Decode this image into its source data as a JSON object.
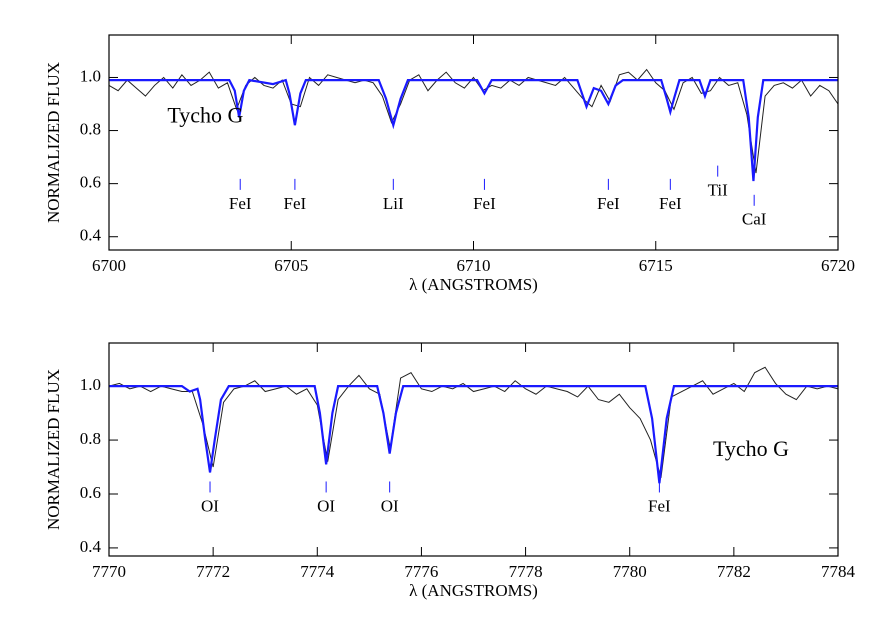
{
  "chart_data": [
    {
      "type": "line",
      "xlabel": "λ (ANGSTROMS)",
      "ylabel": "NORMALIZED FLUX",
      "xlim": [
        6700,
        6720
      ],
      "ylim": [
        0.35,
        1.16
      ],
      "xticks": [
        6700,
        6705,
        6710,
        6715,
        6720
      ],
      "yticks": [
        {
          "value": 0.4,
          "label": "0.4"
        },
        {
          "value": 0.6,
          "label": "0.6"
        },
        {
          "value": 0.8,
          "label": "0.8"
        },
        {
          "value": 1,
          "label": "1.0"
        }
      ],
      "series": [
        {
          "color": "#222222",
          "x": [
            6700,
            6700.25,
            6700.5,
            6700.75,
            6701,
            6701.25,
            6701.5,
            6701.75,
            6702,
            6702.25,
            6702.5,
            6702.75,
            6703,
            6703.25,
            6703.5,
            6703.75,
            6704,
            6704.25,
            6704.5,
            6704.75,
            6705,
            6705.25,
            6705.5,
            6705.75,
            6706,
            6706.25,
            6706.5,
            6706.75,
            6707,
            6707.25,
            6707.5,
            6707.75,
            6708,
            6708.25,
            6708.5,
            6708.75,
            6709,
            6709.25,
            6709.5,
            6709.75,
            6710,
            6710.25,
            6710.5,
            6710.75,
            6711,
            6711.25,
            6711.5,
            6711.75,
            6712,
            6712.25,
            6712.5,
            6712.75,
            6713,
            6713.25,
            6713.5,
            6713.75,
            6714,
            6714.25,
            6714.5,
            6714.75,
            6715,
            6715.25,
            6715.5,
            6715.75,
            6716,
            6716.25,
            6716.5,
            6716.75,
            6717,
            6717.25,
            6717.5,
            6717.75,
            6718,
            6718.25,
            6718.5,
            6718.75,
            6719,
            6719.25,
            6719.5,
            6719.75,
            6720
          ],
          "values": [
            0.97,
            0.95,
            0.99,
            0.96,
            0.93,
            0.97,
            1.0,
            0.96,
            1.01,
            0.97,
            0.99,
            1.02,
            0.96,
            0.98,
            0.88,
            0.97,
            1.0,
            0.97,
            0.96,
            0.99,
            0.9,
            0.89,
            1.0,
            0.97,
            1.01,
            1.0,
            0.99,
            0.98,
            0.99,
            0.98,
            0.93,
            0.83,
            0.9,
            0.99,
            1.01,
            0.95,
            0.99,
            1.02,
            0.98,
            0.96,
            1.0,
            0.95,
            0.97,
            0.96,
            0.99,
            0.97,
            1.0,
            0.99,
            0.98,
            0.97,
            1.0,
            0.96,
            0.92,
            0.89,
            0.97,
            0.91,
            1.01,
            1.02,
            0.99,
            1.03,
            0.98,
            0.95,
            0.88,
            0.98,
            1.0,
            0.94,
            0.95,
            1.0,
            0.97,
            0.98,
            0.86,
            0.64,
            0.93,
            0.97,
            0.98,
            0.96,
            0.99,
            0.93,
            0.97,
            0.95,
            0.9
          ]
        },
        {
          "color": "#1a1aff",
          "x": [
            6700,
            6703.3,
            6703.45,
            6703.57,
            6703.7,
            6703.85,
            6704.5,
            6704.85,
            6704.95,
            6705.1,
            6705.25,
            6705.4,
            6707.4,
            6707.6,
            6707.8,
            6708,
            6708.2,
            6710.1,
            6710.3,
            6710.5,
            6712.85,
            6713,
            6713.1,
            6713.3,
            6713.5,
            6713.7,
            6713.9,
            6714.1,
            6715.15,
            6715.3,
            6715.4,
            6715.5,
            6715.65,
            6716.2,
            6716.35,
            6716.5,
            6717.4,
            6717.55,
            6717.68,
            6717.8,
            6717.95,
            6720
          ],
          "values": [
            0.99,
            0.99,
            0.95,
            0.85,
            0.95,
            0.99,
            0.975,
            0.99,
            0.94,
            0.82,
            0.94,
            0.99,
            0.99,
            0.92,
            0.82,
            0.92,
            0.99,
            0.99,
            0.94,
            0.99,
            0.99,
            0.93,
            0.89,
            0.96,
            0.95,
            0.9,
            0.97,
            0.99,
            0.99,
            0.92,
            0.87,
            0.92,
            0.99,
            0.99,
            0.93,
            0.99,
            0.99,
            0.85,
            0.61,
            0.85,
            0.99,
            0.99
          ]
        }
      ],
      "annotations": [
        {
          "text": "Tycho G",
          "x": 6701.6,
          "y": 0.85
        }
      ],
      "lines": [
        {
          "label": "FeI",
          "x": 6703.6,
          "y": 0.52
        },
        {
          "label": "FeI",
          "x": 6705.1,
          "y": 0.52
        },
        {
          "label": "LiI",
          "x": 6707.8,
          "y": 0.52
        },
        {
          "label": "FeI",
          "x": 6710.3,
          "y": 0.52
        },
        {
          "label": "FeI",
          "x": 6713.7,
          "y": 0.52
        },
        {
          "label": "FeI",
          "x": 6715.4,
          "y": 0.52
        },
        {
          "label": "TiI",
          "x": 6716.7,
          "y": 0.57
        },
        {
          "label": "CaI",
          "x": 6717.7,
          "y": 0.46
        }
      ],
      "line_color": "#1a1aff"
    },
    {
      "type": "line",
      "xlabel": "λ (ANGSTROMS)",
      "ylabel": "NORMALIZED FLUX",
      "xlim": [
        7770,
        7784
      ],
      "ylim": [
        0.37,
        1.16
      ],
      "xticks": [
        7770,
        7772,
        7774,
        7776,
        7778,
        7780,
        7782,
        7784
      ],
      "yticks": [
        {
          "value": 0.4,
          "label": "0.4"
        },
        {
          "value": 0.6,
          "label": "0.6"
        },
        {
          "value": 0.8,
          "label": "0.8"
        },
        {
          "value": 1,
          "label": "1.0"
        }
      ],
      "series": [
        {
          "color": "#222222",
          "x": [
            7770,
            7770.2,
            7770.4,
            7770.6,
            7770.8,
            7771,
            7771.2,
            7771.4,
            7771.6,
            7771.8,
            7772,
            7772.2,
            7772.4,
            7772.6,
            7772.8,
            7773,
            7773.2,
            7773.4,
            7773.6,
            7773.8,
            7774,
            7774.2,
            7774.4,
            7774.6,
            7774.8,
            7775,
            7775.2,
            7775.4,
            7775.6,
            7775.8,
            7776,
            7776.2,
            7776.4,
            7776.6,
            7776.8,
            7777,
            7777.2,
            7777.4,
            7777.6,
            7777.8,
            7778,
            7778.2,
            7778.4,
            7778.6,
            7778.8,
            7779,
            7779.2,
            7779.4,
            7779.6,
            7779.8,
            7780,
            7780.2,
            7780.4,
            7780.6,
            7780.8,
            7781,
            7781.2,
            7781.4,
            7781.6,
            7781.8,
            7782,
            7782.2,
            7782.4,
            7782.6,
            7782.8,
            7783,
            7783.2,
            7783.4,
            7783.6,
            7783.8,
            7784
          ],
          "values": [
            1.0,
            1.01,
            0.99,
            1.0,
            0.98,
            1.0,
            0.99,
            0.98,
            0.98,
            0.86,
            0.7,
            0.94,
            0.99,
            1.0,
            1.02,
            0.98,
            0.99,
            1.0,
            0.97,
            0.99,
            0.93,
            0.72,
            0.95,
            1.0,
            1.04,
            0.99,
            0.97,
            0.77,
            1.03,
            1.05,
            0.99,
            0.98,
            1.0,
            0.99,
            1.01,
            0.98,
            0.99,
            1.0,
            0.98,
            1.02,
            0.99,
            0.97,
            1.0,
            0.99,
            0.98,
            0.96,
            1.0,
            0.95,
            0.94,
            0.97,
            0.92,
            0.88,
            0.8,
            0.66,
            0.96,
            0.98,
            1.0,
            1.02,
            0.97,
            0.99,
            1.01,
            0.98,
            1.05,
            1.07,
            1.01,
            0.97,
            0.95,
            1.0,
            0.99,
            1.0,
            0.99
          ]
        },
        {
          "color": "#1a1aff",
          "x": [
            7770,
            7771.4,
            7771.55,
            7771.7,
            7771.75,
            7771.85,
            7771.94,
            7772.03,
            7772.15,
            7772.3,
            7773.95,
            7774.05,
            7774.17,
            7774.29,
            7774.4,
            7775.15,
            7775.27,
            7775.39,
            7775.51,
            7775.65,
            7780.3,
            7780.43,
            7780.57,
            7780.71,
            7780.85,
            7784
          ],
          "values": [
            1.0,
            1.0,
            0.98,
            0.99,
            0.95,
            0.8,
            0.68,
            0.8,
            0.95,
            1.0,
            1.0,
            0.9,
            0.71,
            0.9,
            1.0,
            1.0,
            0.9,
            0.75,
            0.9,
            1.0,
            1.0,
            0.88,
            0.64,
            0.88,
            1.0,
            1.0
          ]
        }
      ],
      "annotations": [
        {
          "text": "Tycho G",
          "x": 7781.6,
          "y": 0.76
        }
      ],
      "lines": [
        {
          "label": "OI",
          "x": 7771.94,
          "y": 0.55
        },
        {
          "label": "OI",
          "x": 7774.17,
          "y": 0.55
        },
        {
          "label": "OI",
          "x": 7775.39,
          "y": 0.55
        },
        {
          "label": "FeI",
          "x": 7780.57,
          "y": 0.55
        }
      ],
      "line_color": "#1a1aff"
    }
  ]
}
